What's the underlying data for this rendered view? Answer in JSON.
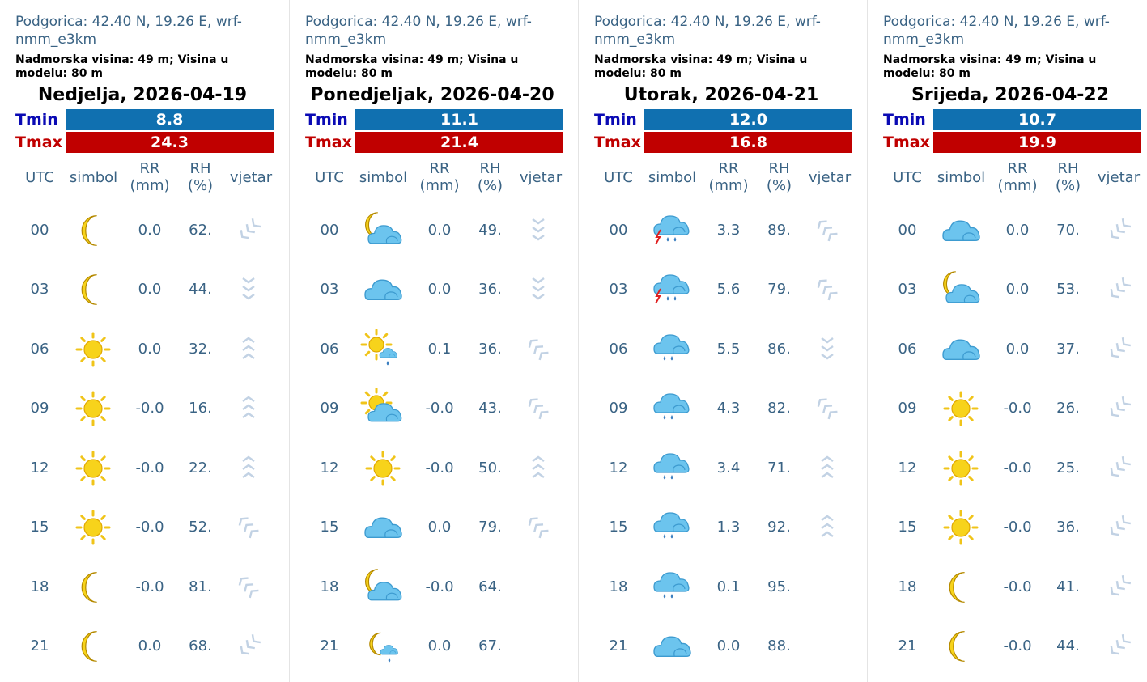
{
  "location": "Podgorica: 42.40 N, 19.26 E, wrf-nmm_e3km",
  "elevation": "Nadmorska visina: 49 m; Visina u modelu: 80 m",
  "labels": {
    "tmin": "Tmin",
    "tmax": "Tmax"
  },
  "headers": [
    "UTC",
    "simbol",
    "RR\n(mm)",
    "RH\n(%)",
    "vjetar"
  ],
  "days": [
    {
      "title": "Nedjelja, 2026-04-19",
      "tmin": "8.8",
      "tmax": "24.3",
      "rows": [
        {
          "utc": "00",
          "symbol": "moon-icon",
          "rr": "0.0",
          "rh": "62.",
          "wind": "wind-arrow-down-left"
        },
        {
          "utc": "03",
          "symbol": "moon-icon",
          "rr": "0.0",
          "rh": "44.",
          "wind": "wind-arrow-down"
        },
        {
          "utc": "06",
          "symbol": "sun-icon",
          "rr": "0.0",
          "rh": "32.",
          "wind": "wind-arrow-up"
        },
        {
          "utc": "09",
          "symbol": "sun-icon",
          "rr": "-0.0",
          "rh": "16.",
          "wind": "wind-arrow-up"
        },
        {
          "utc": "12",
          "symbol": "sun-icon",
          "rr": "-0.0",
          "rh": "22.",
          "wind": "wind-arrow-up"
        },
        {
          "utc": "15",
          "symbol": "sun-icon",
          "rr": "-0.0",
          "rh": "52.",
          "wind": "wind-arrow-up-left"
        },
        {
          "utc": "18",
          "symbol": "moon-icon",
          "rr": "-0.0",
          "rh": "81.",
          "wind": "wind-arrow-up-left"
        },
        {
          "utc": "21",
          "symbol": "moon-icon",
          "rr": "0.0",
          "rh": "68.",
          "wind": "wind-arrow-down-left"
        }
      ]
    },
    {
      "title": "Ponedjeljak, 2026-04-20",
      "tmin": "11.1",
      "tmax": "21.4",
      "rows": [
        {
          "utc": "00",
          "symbol": "moon-cloud-icon",
          "rr": "0.0",
          "rh": "49.",
          "wind": "wind-arrow-down"
        },
        {
          "utc": "03",
          "symbol": "cloud-icon",
          "rr": "0.0",
          "rh": "36.",
          "wind": "wind-arrow-down"
        },
        {
          "utc": "06",
          "symbol": "sun-cloud-rain-icon",
          "rr": "0.1",
          "rh": "36.",
          "wind": "wind-arrow-up-left"
        },
        {
          "utc": "09",
          "symbol": "sun-cloud-icon",
          "rr": "-0.0",
          "rh": "43.",
          "wind": "wind-arrow-up-left"
        },
        {
          "utc": "12",
          "symbol": "sun-icon",
          "rr": "-0.0",
          "rh": "50.",
          "wind": "wind-arrow-up"
        },
        {
          "utc": "15",
          "symbol": "cloud-icon",
          "rr": "0.0",
          "rh": "79.",
          "wind": "wind-arrow-up-left"
        },
        {
          "utc": "18",
          "symbol": "moon-cloud-icon",
          "rr": "-0.0",
          "rh": "64.",
          "wind": ""
        },
        {
          "utc": "21",
          "symbol": "moon-rain-icon",
          "rr": "0.0",
          "rh": "67.",
          "wind": ""
        }
      ]
    },
    {
      "title": "Utorak, 2026-04-21",
      "tmin": "12.0",
      "tmax": "16.8",
      "rows": [
        {
          "utc": "00",
          "symbol": "thunderstorm-icon",
          "rr": "3.3",
          "rh": "89.",
          "wind": "wind-arrow-up-left"
        },
        {
          "utc": "03",
          "symbol": "thunderstorm-icon",
          "rr": "5.6",
          "rh": "79.",
          "wind": "wind-arrow-up-left"
        },
        {
          "utc": "06",
          "symbol": "cloud-rain-icon",
          "rr": "5.5",
          "rh": "86.",
          "wind": "wind-arrow-down"
        },
        {
          "utc": "09",
          "symbol": "cloud-rain-icon",
          "rr": "4.3",
          "rh": "82.",
          "wind": "wind-arrow-up-left"
        },
        {
          "utc": "12",
          "symbol": "cloud-rain-icon",
          "rr": "3.4",
          "rh": "71.",
          "wind": "wind-arrow-up"
        },
        {
          "utc": "15",
          "symbol": "cloud-rain-icon",
          "rr": "1.3",
          "rh": "92.",
          "wind": "wind-arrow-up"
        },
        {
          "utc": "18",
          "symbol": "cloud-rain-icon",
          "rr": "0.1",
          "rh": "95.",
          "wind": ""
        },
        {
          "utc": "21",
          "symbol": "cloud-icon",
          "rr": "0.0",
          "rh": "88.",
          "wind": ""
        }
      ]
    },
    {
      "title": "Srijeda, 2026-04-22",
      "tmin": "10.7",
      "tmax": "19.9",
      "rows": [
        {
          "utc": "00",
          "symbol": "cloud-icon",
          "rr": "0.0",
          "rh": "70.",
          "wind": "wind-arrow-down-left"
        },
        {
          "utc": "03",
          "symbol": "moon-cloud-icon",
          "rr": "0.0",
          "rh": "53.",
          "wind": "wind-arrow-down-left"
        },
        {
          "utc": "06",
          "symbol": "cloud-icon",
          "rr": "0.0",
          "rh": "37.",
          "wind": "wind-arrow-down-left"
        },
        {
          "utc": "09",
          "symbol": "sun-icon",
          "rr": "-0.0",
          "rh": "26.",
          "wind": "wind-arrow-down-left"
        },
        {
          "utc": "12",
          "symbol": "sun-icon",
          "rr": "-0.0",
          "rh": "25.",
          "wind": "wind-arrow-down-left"
        },
        {
          "utc": "15",
          "symbol": "sun-icon",
          "rr": "-0.0",
          "rh": "36.",
          "wind": "wind-arrow-down-left"
        },
        {
          "utc": "18",
          "symbol": "moon-icon",
          "rr": "-0.0",
          "rh": "41.",
          "wind": "wind-arrow-down-left"
        },
        {
          "utc": "21",
          "symbol": "moon-icon",
          "rr": "-0.0",
          "rh": "44.",
          "wind": "wind-arrow-down-left"
        }
      ]
    }
  ],
  "colors": {
    "text": "#3a6384",
    "tmin_bar": "#1070b0",
    "tmax_bar": "#c00000",
    "tmin_label": "#0a0ab4",
    "tmax_label": "#c00000",
    "sun": "#f7d31b",
    "cloud": "#6cc4ee",
    "wind_light": "#c2d2e4",
    "wind_dark": "#4a3f8a"
  }
}
